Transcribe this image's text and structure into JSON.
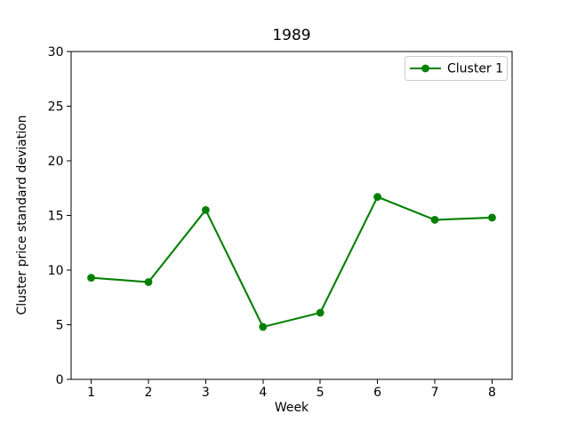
{
  "figure": {
    "background": "#ffffff"
  },
  "chart_data": {
    "type": "line",
    "title": "1989",
    "xlabel": "Week",
    "ylabel": "Cluster price standard deviation",
    "x": [
      1,
      2,
      3,
      4,
      5,
      6,
      7,
      8
    ],
    "series": [
      {
        "name": "Cluster 1",
        "color": "#008000",
        "values": [
          9.3,
          8.9,
          15.5,
          4.8,
          6.1,
          16.7,
          14.6,
          14.8
        ]
      }
    ],
    "xlim": [
      0.65,
      8.35
    ],
    "ylim": [
      0,
      30
    ],
    "xticks": [
      "1",
      "2",
      "3",
      "4",
      "5",
      "6",
      "7",
      "8"
    ],
    "xtick_values": [
      1,
      2,
      3,
      4,
      5,
      6,
      7,
      8
    ],
    "yticks": [
      "0",
      "5",
      "10",
      "15",
      "20",
      "25",
      "30"
    ],
    "ytick_values": [
      0,
      5,
      10,
      15,
      20,
      25,
      30
    ],
    "grid": false,
    "legend_position": "upper right",
    "axis_color": "#000000",
    "legend_border_color": "#cccccc",
    "marker": "circle"
  }
}
